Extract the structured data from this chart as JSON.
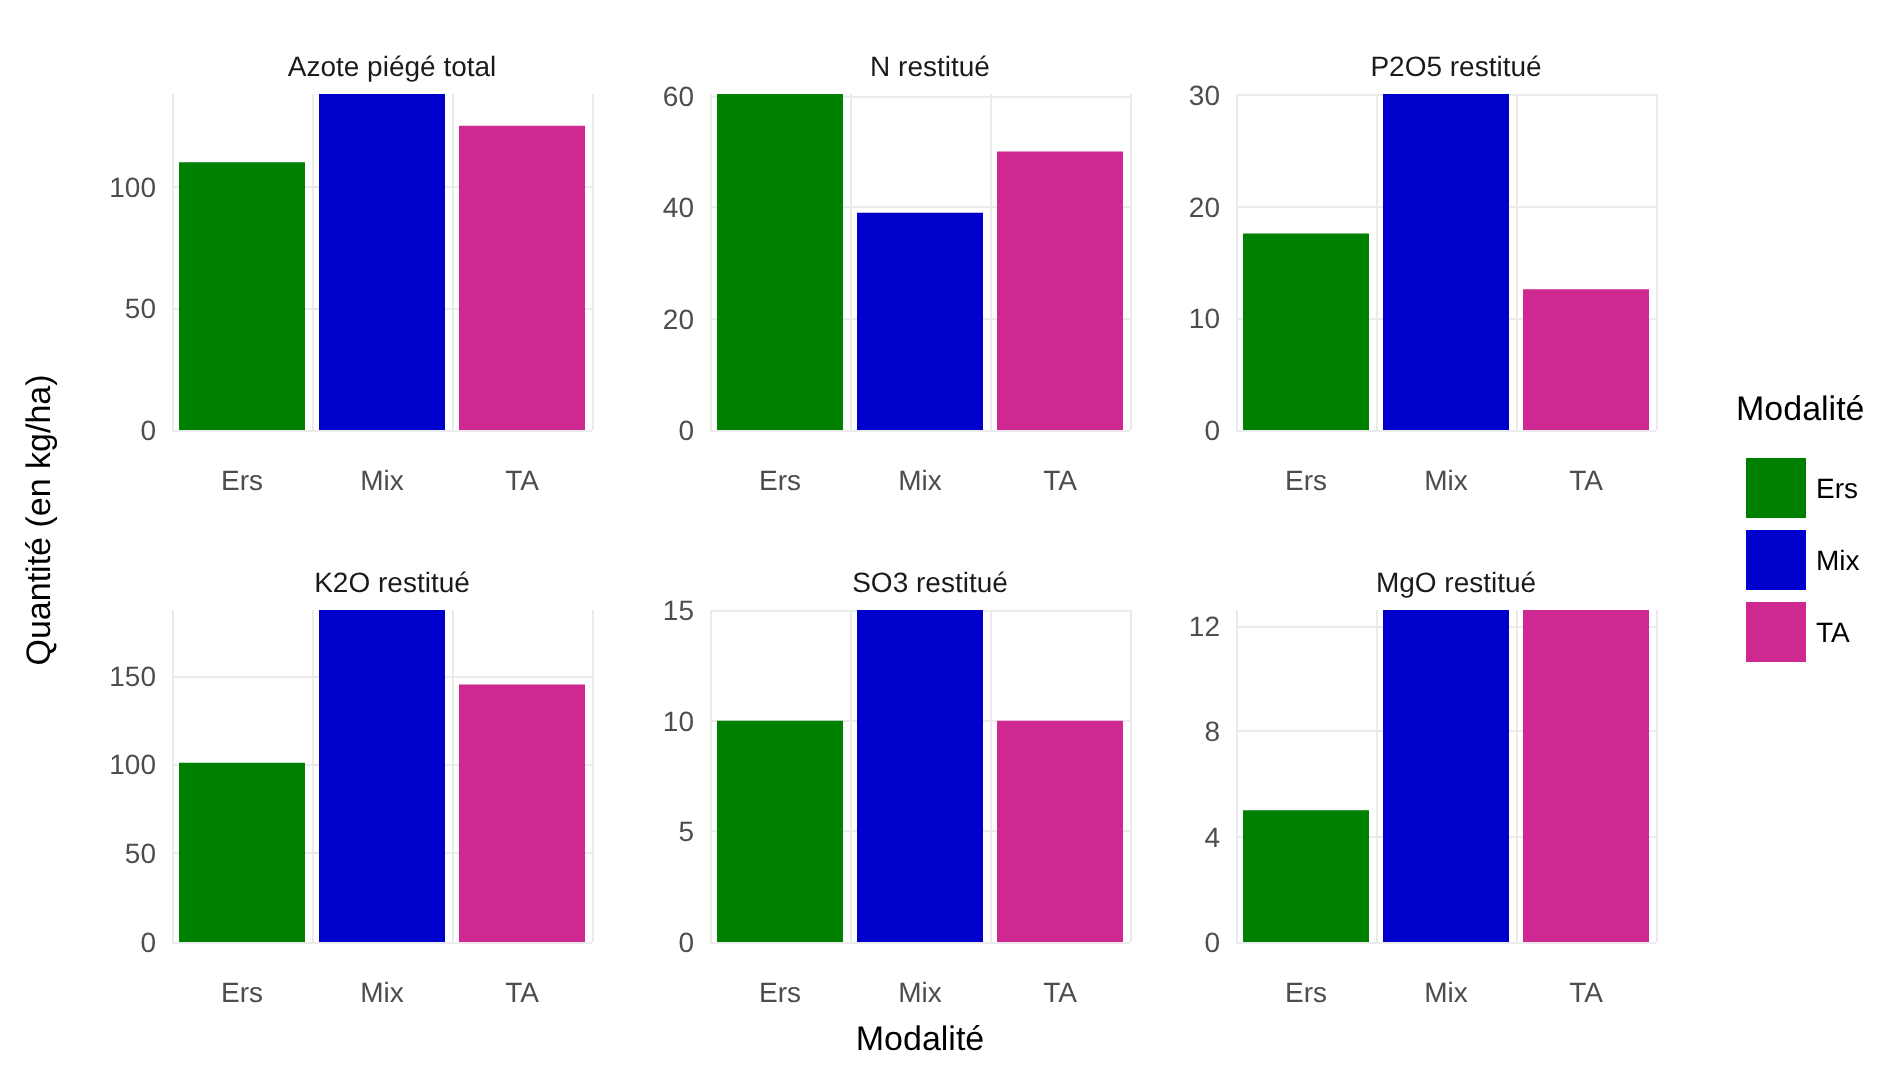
{
  "chart_data": [
    {
      "type": "bar",
      "title": "Azote piégé total",
      "ylabel": "Quantité (en kg/ha)",
      "categories": [
        "Ers",
        "Mix",
        "TA"
      ],
      "series": [
        {
          "color": "#008000",
          "values": [
            110,
            null,
            null
          ]
        },
        {
          "color": "#0000cd",
          "values": [
            null,
            138,
            null
          ]
        },
        {
          "color": "#cd2990",
          "values": [
            null,
            null,
            125
          ]
        }
      ],
      "ylim": [
        0,
        138
      ],
      "yticks": [
        0,
        50,
        100
      ],
      "grid": true
    },
    {
      "type": "bar",
      "title": "N restitué",
      "categories": [
        "Ers",
        "Mix",
        "TA"
      ],
      "series": [
        {
          "color": "#008000",
          "values": [
            60.3,
            null,
            null
          ]
        },
        {
          "color": "#0000cd",
          "values": [
            null,
            39,
            null
          ]
        },
        {
          "color": "#cd2990",
          "values": [
            null,
            null,
            50
          ]
        }
      ],
      "ylim": [
        0,
        60.3
      ],
      "yticks": [
        0,
        20,
        40,
        60
      ],
      "grid": true
    },
    {
      "type": "bar",
      "title": "P2O5 restitué",
      "legend_title": "Modalité",
      "legend": "right",
      "categories": [
        "Ers",
        "Mix",
        "TA"
      ],
      "series": [
        {
          "name": "Ers",
          "color": "#008000",
          "values": [
            17.6,
            null,
            null
          ]
        },
        {
          "name": "Mix",
          "color": "#0000cd",
          "values": [
            null,
            30.1,
            null
          ]
        },
        {
          "name": "TA",
          "color": "#cd2990",
          "values": [
            null,
            null,
            12.6
          ]
        }
      ],
      "ylim": [
        0,
        30.1
      ],
      "yticks": [
        0,
        10,
        20,
        30
      ],
      "grid": true
    },
    {
      "type": "bar",
      "title": "K2O restitué",
      "categories": [
        "Ers",
        "Mix",
        "TA"
      ],
      "series": [
        {
          "color": "#008000",
          "values": [
            101,
            null,
            null
          ]
        },
        {
          "color": "#0000cd",
          "values": [
            null,
            187,
            null
          ]
        },
        {
          "color": "#cd2990",
          "values": [
            null,
            null,
            145
          ]
        }
      ],
      "ylim": [
        0,
        187
      ],
      "yticks": [
        0,
        50,
        100,
        150
      ],
      "grid": true
    },
    {
      "type": "bar",
      "title": "SO3 restitué",
      "xlabel": "Modalité",
      "categories": [
        "Ers",
        "Mix",
        "TA"
      ],
      "series": [
        {
          "color": "#008000",
          "values": [
            10,
            null,
            null
          ]
        },
        {
          "color": "#0000cd",
          "values": [
            null,
            15,
            null
          ]
        },
        {
          "color": "#cd2990",
          "values": [
            null,
            null,
            10
          ]
        }
      ],
      "ylim": [
        0,
        15
      ],
      "yticks": [
        0,
        5,
        10,
        15
      ],
      "grid": true
    },
    {
      "type": "bar",
      "title": "MgO restitué",
      "categories": [
        "Ers",
        "Mix",
        "TA"
      ],
      "series": [
        {
          "color": "#008000",
          "values": [
            5,
            null,
            null
          ]
        },
        {
          "color": "#0000cd",
          "values": [
            null,
            12.6,
            null
          ]
        },
        {
          "color": "#cd2990",
          "values": [
            null,
            null,
            12.6
          ]
        }
      ],
      "ylim": [
        0,
        12.6
      ],
      "yticks": [
        0,
        4,
        8,
        12
      ],
      "grid": true
    }
  ]
}
